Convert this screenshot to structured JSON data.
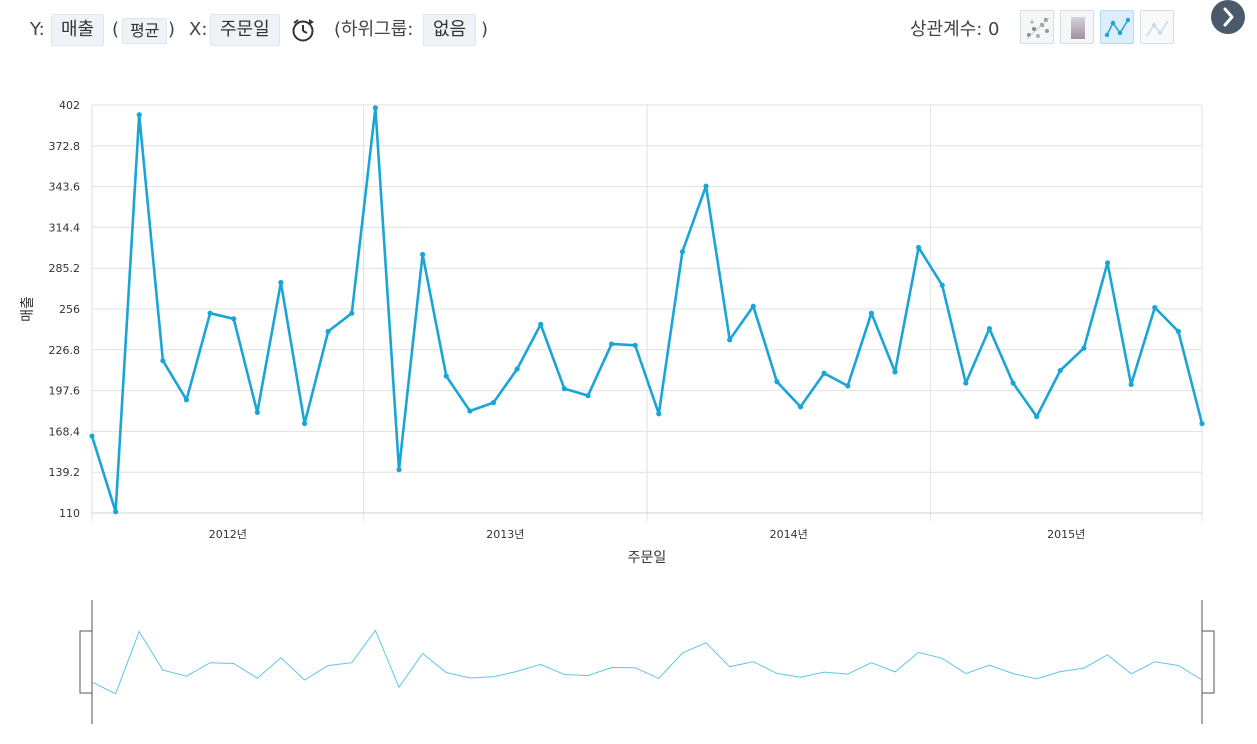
{
  "toolbar": {
    "y_label": "Y:",
    "y_field": "매출",
    "agg_open": "(",
    "agg": "평균",
    "agg_close": ")",
    "x_label": "X:",
    "x_field": "주문일",
    "subgroup_label": "(하위그룹:",
    "subgroup_value": "없음",
    "subgroup_close": ")",
    "correlation": "상관계수: 0"
  },
  "icons": {
    "clock": "clock-refresh-icon",
    "scatter": "scatter-chart-icon",
    "gradient": "gradient-chart-icon",
    "line": "line-chart-icon",
    "line_light": "line-chart-light-icon",
    "next": "chevron-right-icon"
  },
  "colors": {
    "line": "#1aa5d6",
    "grid": "#e1e1e1",
    "nav_line": "#5fc6e8"
  },
  "chart_data": {
    "type": "line",
    "xlabel": "주문일",
    "ylabel": "매출",
    "ylim": [
      110,
      402
    ],
    "y_ticks": [
      "110",
      "139.2",
      "168.4",
      "197.6",
      "226.8",
      "256",
      "285.2",
      "314.4",
      "343.6",
      "372.8",
      "402"
    ],
    "x_ticks": [
      "2012년",
      "2013년",
      "2014년",
      "2015년"
    ],
    "x": [
      "2012-01",
      "2012-02",
      "2012-03",
      "2012-04",
      "2012-05",
      "2012-06",
      "2012-07",
      "2012-08",
      "2012-09",
      "2012-10",
      "2012-11",
      "2012-12",
      "2013-01",
      "2013-02",
      "2013-03",
      "2013-04",
      "2013-05",
      "2013-06",
      "2013-07",
      "2013-08",
      "2013-09",
      "2013-10",
      "2013-11",
      "2013-12",
      "2014-01",
      "2014-02",
      "2014-03",
      "2014-04",
      "2014-05",
      "2014-06",
      "2014-07",
      "2014-08",
      "2014-09",
      "2014-10",
      "2014-11",
      "2014-12",
      "2015-01",
      "2015-02",
      "2015-03",
      "2015-04",
      "2015-05",
      "2015-06",
      "2015-07",
      "2015-08",
      "2015-09",
      "2015-10",
      "2015-11",
      "2015-12"
    ],
    "series": [
      {
        "values": [
          165,
          111,
          395,
          219,
          191,
          253,
          249,
          182,
          275,
          174,
          240,
          253,
          400,
          141,
          295,
          208,
          183,
          189,
          213,
          245,
          199,
          194,
          231,
          230,
          181,
          297,
          344,
          234,
          258,
          204,
          186,
          210,
          201,
          253,
          211,
          300,
          273,
          203,
          242,
          203,
          179,
          212,
          228,
          289,
          202,
          257,
          240,
          174
        ]
      }
    ],
    "grid": true,
    "legend": "none"
  }
}
